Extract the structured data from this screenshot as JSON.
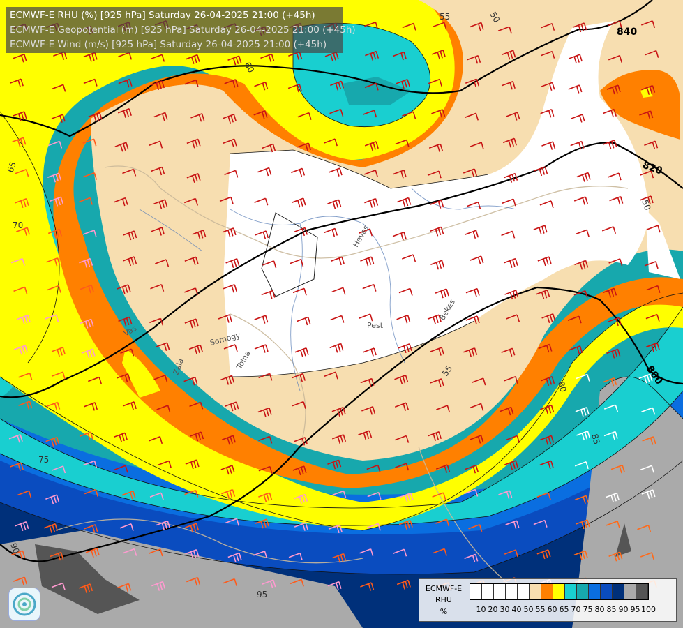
{
  "header": {
    "line1": "ECMWF-E RHU (%) [925 hPa] Saturday 26-04-2025 21:00 (+45h)",
    "line2": "ECMWF-E Geopotential (m) [925 hPa] Saturday 26-04-2025 21:00 (+45h)",
    "line3": "ECMWF-E Wind (m/s) [925 hPa] Saturday 26-04-2025 21:00 (+45h)",
    "line1_color": "#ffffff",
    "line2_color": "#dddddd",
    "line3_color": "#dddddd"
  },
  "legend": {
    "title": "ECMWF-E",
    "field": "RHU",
    "unit": "%",
    "ticks": [
      "10",
      "20",
      "30",
      "40",
      "50",
      "55",
      "60",
      "65",
      "70",
      "75",
      "80",
      "85",
      "90",
      "95",
      "100"
    ],
    "colors": [
      "#ffffff",
      "#ffffff",
      "#ffffff",
      "#ffffff",
      "#ffffff",
      "#f7deb0",
      "#ff8000",
      "#ffff00",
      "#19cfd0",
      "#17a8ad",
      "#0a6ee0",
      "#0a4cbf",
      "#00307a",
      "#aaaaaa",
      "#555555"
    ]
  },
  "geopotential_labels": [
    {
      "text": "840"
    },
    {
      "text": "820"
    },
    {
      "text": "800"
    }
  ],
  "rhu_labels": [
    "50",
    "55",
    "60",
    "65",
    "70",
    "75",
    "80",
    "85",
    "90",
    "95",
    "50",
    "55"
  ],
  "place_labels": [
    "Pest",
    "Heves",
    "Tolna",
    "Somogy",
    "Vas",
    "Zala",
    "Bekes"
  ]
}
